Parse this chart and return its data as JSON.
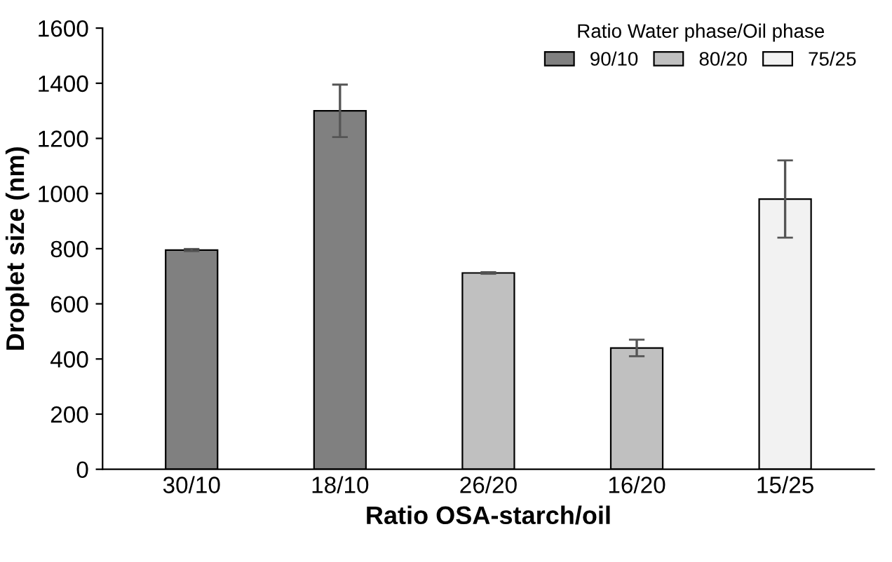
{
  "chart_data": {
    "type": "bar",
    "xlabel": "Ratio OSA-starch/oil",
    "ylabel": "Droplet size (nm)",
    "legend_title": "Ratio Water phase/Oil phase",
    "categories": [
      "30/10",
      "18/10",
      "26/20",
      "16/20",
      "15/25"
    ],
    "series": [
      {
        "name": "90/10",
        "color": "#808080",
        "values": [
          795,
          1300,
          null,
          null,
          null
        ],
        "errors": [
          4,
          95,
          null,
          null,
          null
        ]
      },
      {
        "name": "80/20",
        "color": "#c0c0c0",
        "values": [
          null,
          null,
          712,
          440,
          null
        ],
        "errors": [
          null,
          null,
          3,
          30,
          null
        ]
      },
      {
        "name": "75/25",
        "color": "#f2f2f2",
        "values": [
          null,
          null,
          null,
          null,
          980
        ],
        "errors": [
          null,
          null,
          null,
          null,
          140
        ]
      }
    ],
    "ylim": [
      0,
      1600
    ],
    "yticks": [
      0,
      200,
      400,
      600,
      800,
      1000,
      1200,
      1400,
      1600
    ],
    "grid": false,
    "legend": "top right"
  }
}
